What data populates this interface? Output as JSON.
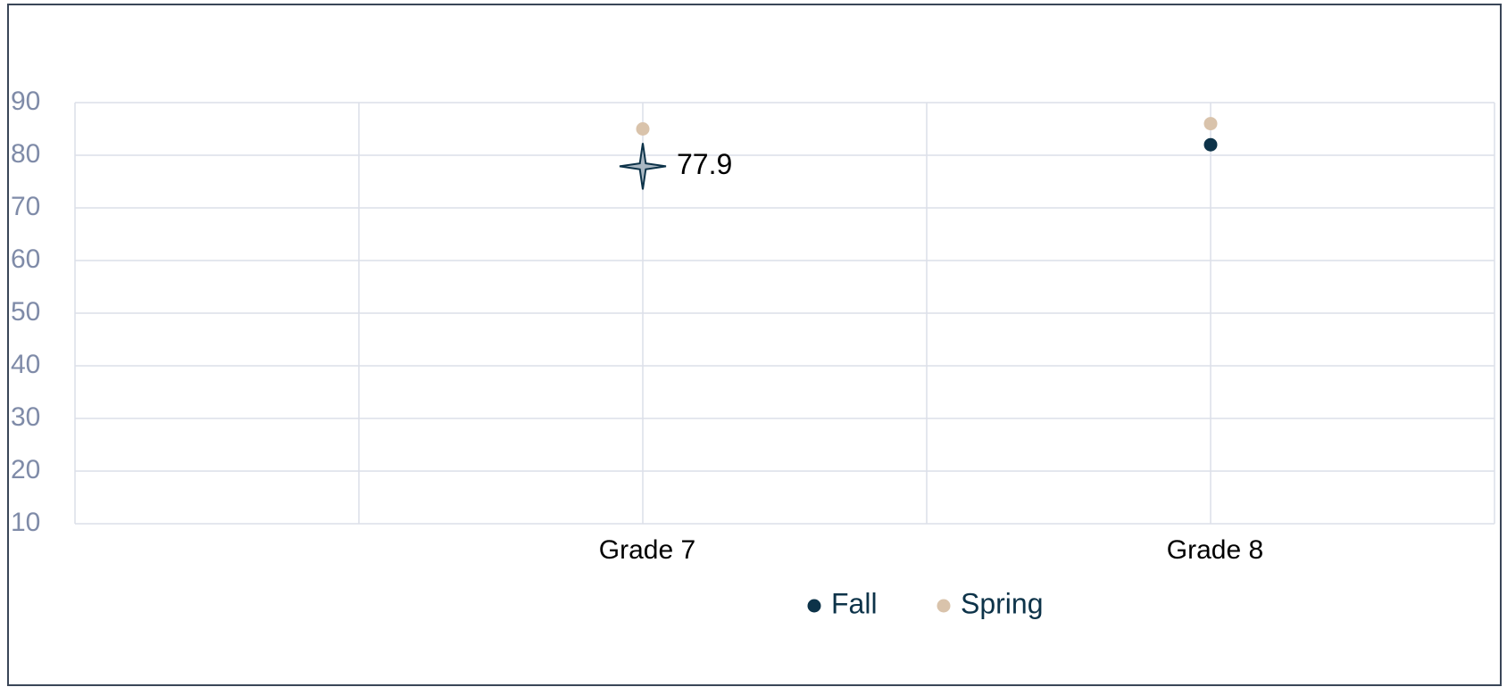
{
  "chart_data": {
    "type": "dot",
    "categories": [
      "Grade 7",
      "Grade 8"
    ],
    "series": [
      {
        "name": "Fall",
        "color": "#0d3349",
        "values": [
          77.9,
          82
        ]
      },
      {
        "name": "Spring",
        "color": "#d9c3ab",
        "values": [
          85,
          86
        ]
      }
    ],
    "highlight": {
      "series": 0,
      "index": 0
    },
    "ylim": [
      10,
      90
    ],
    "yticks": [
      10,
      20,
      30,
      40,
      50,
      60,
      70,
      80,
      90
    ],
    "grid": true
  }
}
